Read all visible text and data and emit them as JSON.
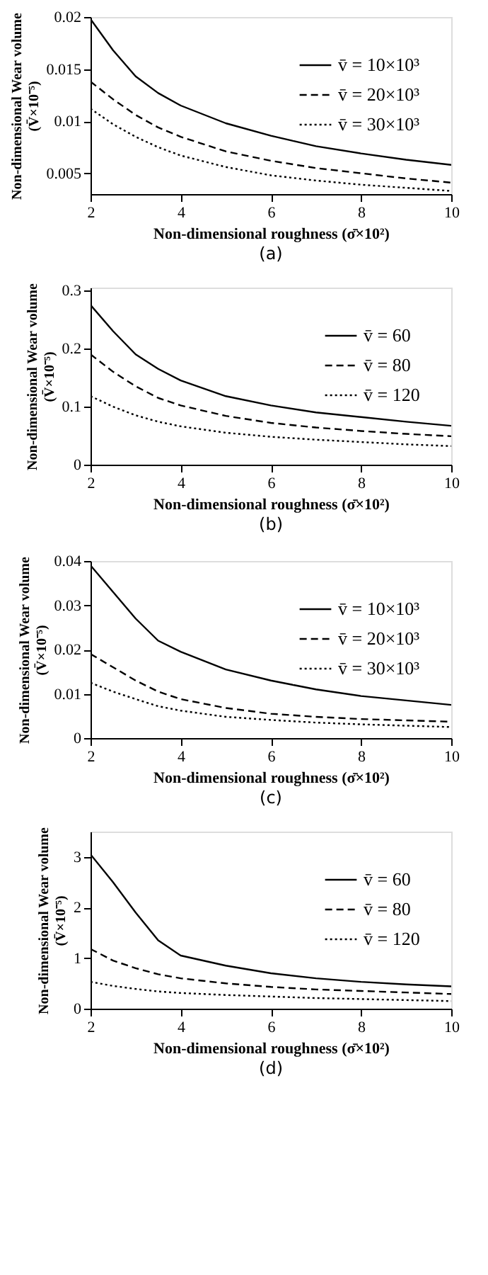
{
  "chart_data": [
    {
      "type": "line",
      "xlabel": "Non-dimensional roughness (σ̄×10²)",
      "ylabel": "Non-dimensional Wear volume (V̄×10⁻⁵)",
      "annotations": [
        "(a)"
      ],
      "x": [
        2,
        2.5,
        3,
        3.5,
        4,
        5,
        6,
        7,
        8,
        9,
        10
      ],
      "xlim": [
        2,
        10
      ],
      "xticks": [
        2,
        4,
        6,
        8,
        10
      ],
      "ylim": [
        0.003,
        0.02
      ],
      "yticks": [
        0.005,
        0.01,
        0.015,
        0.02
      ],
      "legend": "top right",
      "grid": false,
      "marker": "none",
      "series": [
        {
          "name": "v̄ = 10×10³",
          "color": "#000000",
          "line_style": "solid",
          "values": [
            0.0198,
            0.0168,
            0.0143,
            0.0127,
            0.0115,
            0.0098,
            0.0086,
            0.0076,
            0.0069,
            0.0063,
            0.0058
          ]
        },
        {
          "name": "v̄ = 20×10³",
          "color": "#000000",
          "line_style": "dashed",
          "values": [
            0.0138,
            0.0121,
            0.0106,
            0.0094,
            0.0085,
            0.0071,
            0.0062,
            0.0055,
            0.005,
            0.0045,
            0.0041
          ]
        },
        {
          "name": "v̄ = 30×10³",
          "color": "#000000",
          "line_style": "dotted",
          "values": [
            0.0112,
            0.0097,
            0.0085,
            0.0075,
            0.0067,
            0.0056,
            0.0048,
            0.0043,
            0.0039,
            0.0036,
            0.0033
          ]
        }
      ]
    },
    {
      "type": "line",
      "xlabel": "Non-dimensional roughness (σ̄×10²)",
      "ylabel": "Non-dimensional Wear volume (V̄×10⁻⁵)",
      "annotations": [
        "(b)"
      ],
      "x": [
        2,
        2.5,
        3,
        3.5,
        4,
        5,
        6,
        7,
        8,
        9,
        10
      ],
      "xlim": [
        2,
        10
      ],
      "xticks": [
        2,
        4,
        6,
        8,
        10
      ],
      "ylim": [
        0,
        0.305
      ],
      "yticks": [
        0,
        0.1,
        0.2,
        0.3
      ],
      "legend": "top right",
      "grid": false,
      "marker": "none",
      "series": [
        {
          "name": "v̄ = 60",
          "color": "#000000",
          "line_style": "solid",
          "values": [
            0.275,
            0.23,
            0.19,
            0.165,
            0.145,
            0.118,
            0.102,
            0.09,
            0.082,
            0.074,
            0.067
          ]
        },
        {
          "name": "v̄ = 80",
          "color": "#000000",
          "line_style": "dashed",
          "values": [
            0.19,
            0.16,
            0.135,
            0.115,
            0.102,
            0.084,
            0.072,
            0.064,
            0.058,
            0.053,
            0.049
          ]
        },
        {
          "name": "v̄ = 120",
          "color": "#000000",
          "line_style": "dotted",
          "values": [
            0.118,
            0.1,
            0.085,
            0.074,
            0.066,
            0.055,
            0.048,
            0.043,
            0.039,
            0.035,
            0.032
          ]
        }
      ]
    },
    {
      "type": "line",
      "xlabel": "Non-dimensional roughness (σ̄×10²)",
      "ylabel": "Non-dimensional Wear volume (V̄×10⁻⁵)",
      "annotations": [
        "(c)"
      ],
      "x": [
        2,
        2.5,
        3,
        3.5,
        4,
        5,
        6,
        7,
        8,
        9,
        10
      ],
      "xlim": [
        2,
        10
      ],
      "xticks": [
        2,
        4,
        6,
        8,
        10
      ],
      "ylim": [
        0,
        0.04
      ],
      "yticks": [
        0,
        0.01,
        0.02,
        0.03,
        0.04
      ],
      "legend": "top right",
      "grid": false,
      "marker": "none",
      "series": [
        {
          "name": "v̄ = 10×10³",
          "color": "#000000",
          "line_style": "solid",
          "values": [
            0.039,
            0.033,
            0.027,
            0.022,
            0.0195,
            0.0155,
            0.013,
            0.011,
            0.0095,
            0.0085,
            0.0075
          ]
        },
        {
          "name": "v̄ = 20×10³",
          "color": "#000000",
          "line_style": "dashed",
          "values": [
            0.019,
            0.016,
            0.013,
            0.0105,
            0.0088,
            0.0068,
            0.0055,
            0.0048,
            0.0043,
            0.004,
            0.0037
          ]
        },
        {
          "name": "v̄ = 30×10³",
          "color": "#000000",
          "line_style": "dotted",
          "values": [
            0.0125,
            0.0105,
            0.0088,
            0.0072,
            0.0062,
            0.0048,
            0.0041,
            0.0035,
            0.0031,
            0.0028,
            0.0025
          ]
        }
      ]
    },
    {
      "type": "line",
      "xlabel": "Non-dimensional roughness (σ̄×10²)",
      "ylabel": "Non-dimensional Wear volume (V̄×10⁻⁵)",
      "annotations": [
        "(d)"
      ],
      "x": [
        2,
        2.5,
        3,
        3.5,
        4,
        5,
        6,
        7,
        8,
        9,
        10
      ],
      "xlim": [
        2,
        10
      ],
      "xticks": [
        2,
        4,
        6,
        8,
        10
      ],
      "ylim": [
        0,
        3.5
      ],
      "yticks": [
        0,
        1,
        2,
        3
      ],
      "legend": "top right",
      "grid": false,
      "marker": "none",
      "series": [
        {
          "name": "v̄ = 60",
          "color": "#000000",
          "line_style": "solid",
          "values": [
            3.05,
            2.5,
            1.9,
            1.35,
            1.05,
            0.85,
            0.7,
            0.6,
            0.53,
            0.48,
            0.44
          ]
        },
        {
          "name": "v̄ = 80",
          "color": "#000000",
          "line_style": "dashed",
          "values": [
            1.18,
            0.95,
            0.8,
            0.68,
            0.6,
            0.5,
            0.43,
            0.38,
            0.35,
            0.32,
            0.29
          ]
        },
        {
          "name": "v̄ = 120",
          "color": "#000000",
          "line_style": "dotted",
          "values": [
            0.53,
            0.45,
            0.39,
            0.34,
            0.31,
            0.27,
            0.24,
            0.21,
            0.19,
            0.17,
            0.15
          ]
        }
      ]
    }
  ]
}
